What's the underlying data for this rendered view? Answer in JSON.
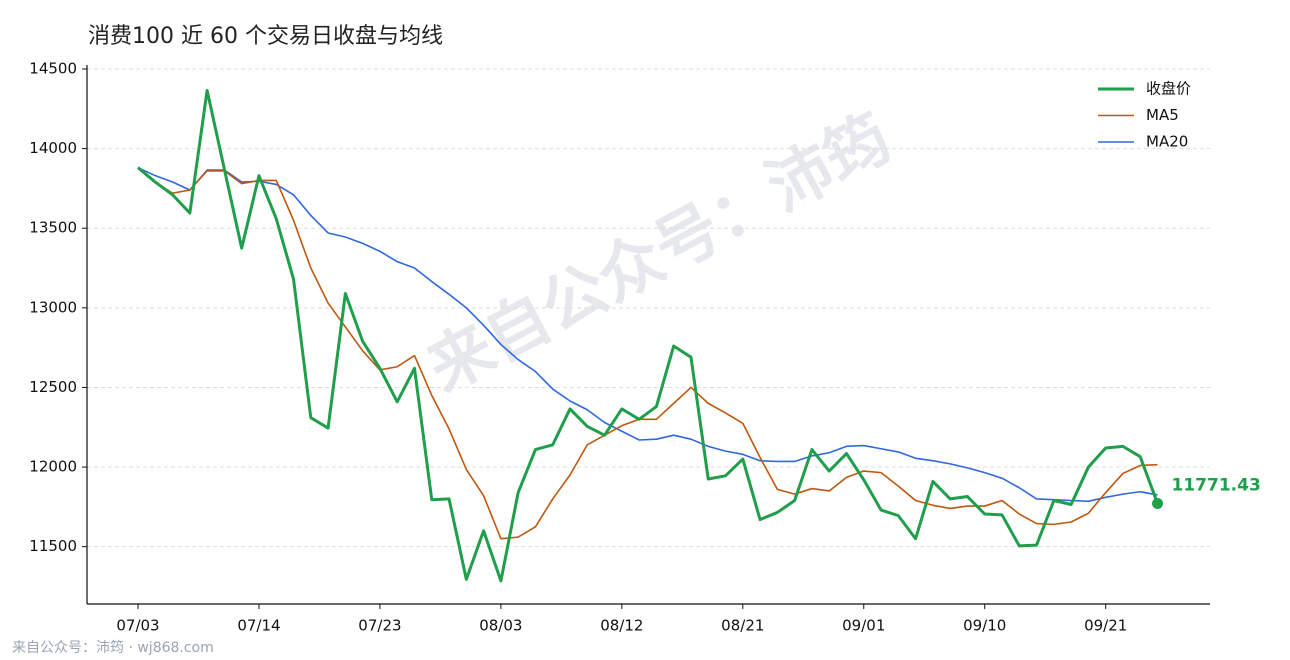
{
  "chart_data": {
    "type": "line",
    "title": "消费100 近 60 个交易日收盘与均线",
    "watermark": "来自公众号：沛筠",
    "footer": "来自公众号：沛筠 · wj868.com",
    "categories": [
      "07/03",
      null,
      null,
      null,
      null,
      null,
      null,
      "07/14",
      null,
      null,
      null,
      null,
      null,
      null,
      "07/23",
      null,
      null,
      null,
      null,
      null,
      null,
      "08/03",
      null,
      null,
      null,
      null,
      null,
      null,
      "08/12",
      null,
      null,
      null,
      null,
      null,
      null,
      "08/21",
      null,
      null,
      null,
      null,
      null,
      null,
      "09/01",
      null,
      null,
      null,
      null,
      null,
      null,
      "09/10",
      null,
      null,
      null,
      null,
      null,
      null,
      "09/21",
      null,
      null,
      null
    ],
    "series": [
      {
        "name": "收盘价",
        "color": "#1f9e4b",
        "width": 3,
        "values": [
          13880,
          13790,
          13710,
          13595,
          14365,
          13870,
          13375,
          13830,
          13560,
          13180,
          12310,
          12245,
          13090,
          12790,
          12620,
          12410,
          12620,
          11795,
          11800,
          11295,
          11600,
          11285,
          11840,
          12110,
          12140,
          12365,
          12255,
          12200,
          12365,
          12300,
          12380,
          12760,
          12690,
          11925,
          11945,
          12050,
          11670,
          11715,
          11790,
          12110,
          11975,
          12085,
          11920,
          11730,
          11695,
          11550,
          11910,
          11800,
          11815,
          11705,
          11700,
          11505,
          11510,
          11790,
          11765,
          12000,
          12120,
          12130,
          12065,
          11771.43
        ]
      },
      {
        "name": "MA5",
        "color": "#c0570f",
        "width": 1.6,
        "values": [
          13880,
          13790,
          13720,
          13740,
          13860,
          13860,
          13780,
          13800,
          13800,
          13550,
          13250,
          13030,
          12880,
          12730,
          12610,
          12630,
          12700,
          12450,
          12240,
          11985,
          11820,
          11550,
          11560,
          11625,
          11800,
          11950,
          12140,
          12200,
          12260,
          12300,
          12300,
          12400,
          12500,
          12400,
          12340,
          12275,
          12060,
          11860,
          11830,
          11865,
          11850,
          11935,
          11975,
          11965,
          11880,
          11790,
          11760,
          11740,
          11755,
          11755,
          11790,
          11705,
          11645,
          11640,
          11655,
          11710,
          11840,
          11960,
          12010,
          12015
        ]
      },
      {
        "name": "MA20",
        "color": "#2f68de",
        "width": 1.6,
        "values": [
          13880,
          13830,
          13790,
          13740,
          13865,
          13865,
          13790,
          13795,
          13775,
          13710,
          13580,
          13470,
          13445,
          13405,
          13355,
          13290,
          13250,
          13165,
          13085,
          13000,
          12890,
          12770,
          12675,
          12600,
          12490,
          12415,
          12360,
          12280,
          12225,
          12170,
          12175,
          12200,
          12175,
          12130,
          12100,
          12080,
          12040,
          12035,
          12035,
          12070,
          12090,
          12130,
          12135,
          12115,
          12095,
          12055,
          12040,
          12020,
          11995,
          11965,
          11930,
          11870,
          11800,
          11795,
          11790,
          11785,
          11810,
          11830,
          11845,
          11825
        ]
      }
    ],
    "ylim": [
      11140,
      14525
    ],
    "yticks": [
      11500,
      12000,
      12500,
      13000,
      13500,
      14000,
      14500
    ],
    "grid": true,
    "legend": "upper-right"
  }
}
